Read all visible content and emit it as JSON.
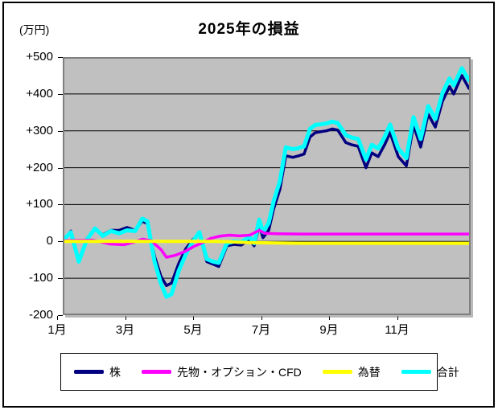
{
  "chart_data": {
    "type": "line",
    "title": "2025年の損益",
    "unit_label": "(万円)",
    "xlabel": "",
    "ylabel": "(万円)",
    "ylim": [
      -200,
      500
    ],
    "x_months": 12,
    "grid": true,
    "plot_bg": "#c0c0c0",
    "legend_position": "bottom",
    "grid_values": [
      400,
      300,
      200,
      100,
      0,
      -100
    ],
    "y_ticks": [
      {
        "label": "+500",
        "value": 500
      },
      {
        "label": "+400",
        "value": 400
      },
      {
        "label": "+300",
        "value": 300
      },
      {
        "label": "+200",
        "value": 200
      },
      {
        "label": "+100",
        "value": 100
      },
      {
        "label": "0",
        "value": 0
      },
      {
        "label": "-100",
        "value": -100
      },
      {
        "label": "-200",
        "value": -200
      }
    ],
    "x_ticks": [
      {
        "label": "1月",
        "month": 0
      },
      {
        "label": "3月",
        "month": 2
      },
      {
        "label": "5月",
        "month": 4
      },
      {
        "label": "7月",
        "month": 6
      },
      {
        "label": "9月",
        "month": 8
      },
      {
        "label": "11月",
        "month": 10
      }
    ],
    "draw_order": [
      0,
      3,
      1,
      2
    ],
    "series": [
      {
        "name": "株",
        "color": "#000080",
        "width": 3.5,
        "points": [
          [
            0,
            0
          ],
          [
            0.24,
            28
          ],
          [
            0.47,
            -50
          ],
          [
            0.71,
            8
          ],
          [
            0.95,
            32
          ],
          [
            1.18,
            18
          ],
          [
            1.42,
            30
          ],
          [
            1.66,
            30
          ],
          [
            1.89,
            38
          ],
          [
            2.13,
            30
          ],
          [
            2.34,
            55
          ],
          [
            2.49,
            48
          ],
          [
            2.7,
            -40
          ],
          [
            2.89,
            -95
          ],
          [
            3.05,
            -120
          ],
          [
            3.2,
            -113
          ],
          [
            3.41,
            -60
          ],
          [
            3.62,
            -20
          ],
          [
            3.83,
            5
          ],
          [
            4.02,
            20
          ],
          [
            4.24,
            -55
          ],
          [
            4.43,
            -62
          ],
          [
            4.59,
            -68
          ],
          [
            4.83,
            -12
          ],
          [
            5.04,
            -8
          ],
          [
            5.25,
            -10
          ],
          [
            5.49,
            5
          ],
          [
            5.63,
            -12
          ],
          [
            5.78,
            44
          ],
          [
            5.89,
            10
          ],
          [
            6.06,
            30
          ],
          [
            6.2,
            87
          ],
          [
            6.39,
            142
          ],
          [
            6.56,
            232
          ],
          [
            6.77,
            228
          ],
          [
            6.93,
            232
          ],
          [
            7.1,
            237
          ],
          [
            7.27,
            283
          ],
          [
            7.43,
            295
          ],
          [
            7.62,
            298
          ],
          [
            7.76,
            300
          ],
          [
            7.93,
            305
          ],
          [
            8.09,
            302
          ],
          [
            8.33,
            268
          ],
          [
            8.5,
            262
          ],
          [
            8.69,
            258
          ],
          [
            8.92,
            200
          ],
          [
            9.09,
            240
          ],
          [
            9.28,
            230
          ],
          [
            9.47,
            262
          ],
          [
            9.63,
            295
          ],
          [
            9.87,
            230
          ],
          [
            10.11,
            205
          ],
          [
            10.32,
            315
          ],
          [
            10.53,
            256
          ],
          [
            10.75,
            345
          ],
          [
            10.96,
            310
          ],
          [
            11.17,
            380
          ],
          [
            11.38,
            420
          ],
          [
            11.5,
            400
          ],
          [
            11.74,
            450
          ],
          [
            11.95,
            415
          ]
        ]
      },
      {
        "name": "先物・オプション・CFD",
        "color": "#ff00ff",
        "width": 3.5,
        "points": [
          [
            0,
            2
          ],
          [
            0.9,
            3
          ],
          [
            1.4,
            -7
          ],
          [
            1.8,
            -9
          ],
          [
            2.1,
            -2
          ],
          [
            2.34,
            6
          ],
          [
            2.6,
            2
          ],
          [
            2.89,
            -22
          ],
          [
            3.05,
            -43
          ],
          [
            3.3,
            -38
          ],
          [
            3.6,
            -27
          ],
          [
            3.85,
            -14
          ],
          [
            4.1,
            -4
          ],
          [
            4.35,
            8
          ],
          [
            4.6,
            14
          ],
          [
            4.9,
            17
          ],
          [
            5.2,
            15
          ],
          [
            5.5,
            17
          ],
          [
            5.78,
            30
          ],
          [
            5.95,
            22
          ],
          [
            6.3,
            21
          ],
          [
            7,
            20
          ],
          [
            8,
            20
          ],
          [
            9,
            20
          ],
          [
            10,
            20
          ],
          [
            11,
            20
          ],
          [
            11.95,
            20
          ]
        ]
      },
      {
        "name": "為替",
        "color": "#ffff00",
        "width": 4,
        "points": [
          [
            0,
            0
          ],
          [
            4.5,
            0
          ],
          [
            5.5,
            -3
          ],
          [
            7,
            -5
          ],
          [
            11.95,
            -5
          ]
        ]
      },
      {
        "name": "合計",
        "color": "#00ffff",
        "width": 5,
        "points": [
          [
            0,
            2
          ],
          [
            0.24,
            25
          ],
          [
            0.47,
            -55
          ],
          [
            0.71,
            5
          ],
          [
            0.95,
            35
          ],
          [
            1.18,
            15
          ],
          [
            1.42,
            28
          ],
          [
            1.66,
            22
          ],
          [
            1.89,
            30
          ],
          [
            2.13,
            28
          ],
          [
            2.34,
            62
          ],
          [
            2.49,
            55
          ],
          [
            2.7,
            -55
          ],
          [
            2.89,
            -115
          ],
          [
            3.05,
            -150
          ],
          [
            3.2,
            -143
          ],
          [
            3.41,
            -80
          ],
          [
            3.62,
            -35
          ],
          [
            3.83,
            0
          ],
          [
            4.02,
            25
          ],
          [
            4.24,
            -48
          ],
          [
            4.43,
            -55
          ],
          [
            4.59,
            -58
          ],
          [
            4.83,
            -5
          ],
          [
            5.04,
            0
          ],
          [
            5.25,
            -2
          ],
          [
            5.49,
            12
          ],
          [
            5.63,
            -5
          ],
          [
            5.78,
            59
          ],
          [
            5.89,
            25
          ],
          [
            6.06,
            50
          ],
          [
            6.2,
            108
          ],
          [
            6.39,
            165
          ],
          [
            6.56,
            255
          ],
          [
            6.77,
            250
          ],
          [
            6.93,
            253
          ],
          [
            7.1,
            258
          ],
          [
            7.27,
            305
          ],
          [
            7.43,
            316
          ],
          [
            7.62,
            318
          ],
          [
            7.76,
            320
          ],
          [
            7.93,
            325
          ],
          [
            8.09,
            321
          ],
          [
            8.33,
            288
          ],
          [
            8.5,
            282
          ],
          [
            8.69,
            278
          ],
          [
            8.92,
            222
          ],
          [
            9.09,
            262
          ],
          [
            9.28,
            252
          ],
          [
            9.47,
            283
          ],
          [
            9.63,
            317
          ],
          [
            9.87,
            252
          ],
          [
            10.11,
            226
          ],
          [
            10.32,
            337
          ],
          [
            10.53,
            278
          ],
          [
            10.75,
            367
          ],
          [
            10.96,
            332
          ],
          [
            11.17,
            402
          ],
          [
            11.38,
            442
          ],
          [
            11.5,
            423
          ],
          [
            11.74,
            470
          ],
          [
            11.95,
            437
          ]
        ]
      }
    ]
  },
  "legend": {
    "items": [
      {
        "label": "株",
        "color": "#000080"
      },
      {
        "label": "先物・オプション・CFD",
        "color": "#ff00ff"
      },
      {
        "label": "為替",
        "color": "#ffff00"
      },
      {
        "label": "合計",
        "color": "#00ffff"
      }
    ]
  }
}
